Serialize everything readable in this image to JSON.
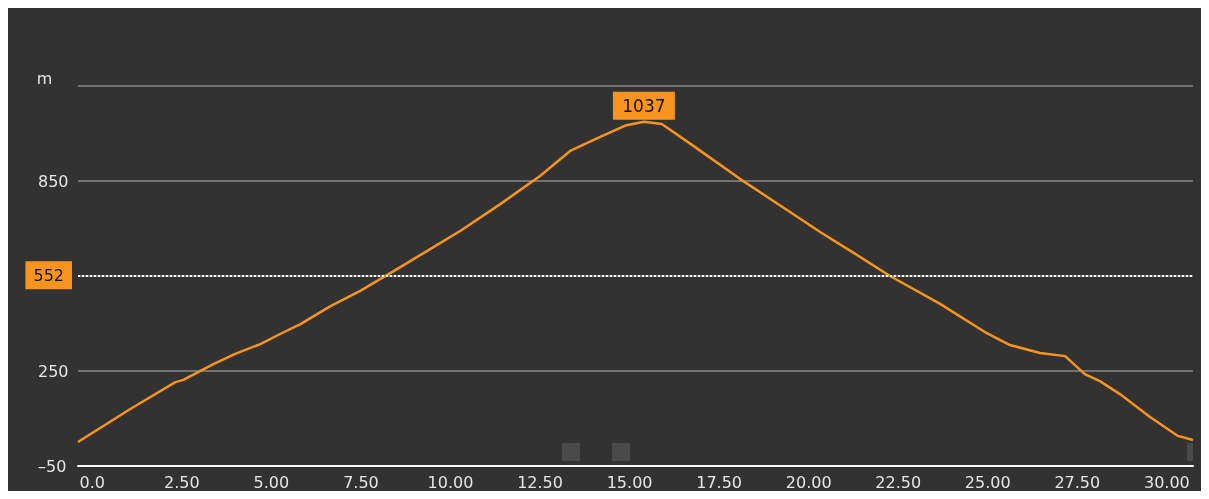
{
  "chart_data": {
    "type": "line",
    "ylabel": "m",
    "x": [
      -0.4,
      1.06,
      2.32,
      2.54,
      3.38,
      3.99,
      4.69,
      5.3,
      5.81,
      6.65,
      7.48,
      8.6,
      9.43,
      10.27,
      11.39,
      12.5,
      13.34,
      14.18,
      14.88,
      15.4,
      15.9,
      16.83,
      18.09,
      19.48,
      20.32,
      21.3,
      22.27,
      23.67,
      24.92,
      25.62,
      26.46,
      27.16,
      27.71,
      28.13,
      28.69,
      29.53,
      30.31,
      30.73
    ],
    "series": [
      {
        "color": "#f7941d",
        "values": [
          26,
          130,
          215,
          222,
          272,
          304,
          335,
          370,
          398,
          455,
          503,
          578,
          635,
          692,
          777,
          866,
          945,
          989,
          1025,
          1037,
          1030,
          957,
          856,
          752,
          689,
          620,
          550,
          462,
          373,
          332,
          307,
          297,
          240,
          218,
          177,
          105,
          45,
          32
        ]
      }
    ],
    "xlim": [
      -0.4,
      30.73
    ],
    "xticks": [
      {
        "value": 0,
        "label": "0.0"
      },
      {
        "value": 2.5,
        "label": "2.50"
      },
      {
        "value": 5,
        "label": "5.00"
      },
      {
        "value": 7.5,
        "label": "7.50"
      },
      {
        "value": 10,
        "label": "10.00"
      },
      {
        "value": 12.5,
        "label": "12.50"
      },
      {
        "value": 15,
        "label": "15.00"
      },
      {
        "value": 17.5,
        "label": "17.50"
      },
      {
        "value": 20,
        "label": "20.00"
      },
      {
        "value": 22.5,
        "label": "22.50"
      },
      {
        "value": 25,
        "label": "25.00"
      },
      {
        "value": 27.5,
        "label": "27.50"
      },
      {
        "value": 30,
        "label": "30.00"
      }
    ],
    "ylim": [
      -50,
      1150
    ],
    "yticks": [
      {
        "value": -50,
        "label": "–50"
      },
      250,
      {
        "value": 550,
        "label": null
      },
      850,
      {
        "value": 1150,
        "label": null
      }
    ],
    "grid": "y",
    "marker": "none",
    "line_style": "solid",
    "ref_lines": [
      {
        "axis": "y",
        "value": 552,
        "label": "552",
        "color": "#ffffff",
        "line_style": "dotted"
      }
    ],
    "annotations": [
      {
        "text": "1037",
        "x": 15.4,
        "y": 1037
      }
    ]
  }
}
